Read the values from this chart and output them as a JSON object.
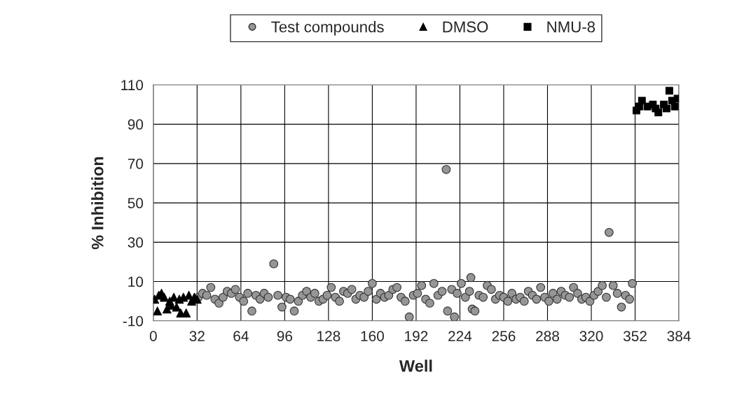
{
  "chart_data": {
    "type": "scatter",
    "xlabel": "Well",
    "ylabel": "% Inhibition",
    "xlim": [
      0,
      384
    ],
    "ylim": [
      -10,
      110
    ],
    "xticks": [
      0,
      32,
      64,
      96,
      128,
      160,
      192,
      224,
      256,
      288,
      320,
      352,
      384
    ],
    "yticks": [
      -10,
      10,
      30,
      50,
      70,
      90,
      110
    ],
    "grid": true,
    "legend": "top",
    "series": [
      {
        "name": "Test compounds",
        "color": "#969696",
        "marker": "circle",
        "x": [
          33,
          36,
          39,
          42,
          45,
          48,
          51,
          54,
          57,
          60,
          63,
          66,
          69,
          72,
          75,
          78,
          81,
          84,
          88,
          91,
          94,
          97,
          100,
          103,
          106,
          109,
          112,
          115,
          118,
          121,
          124,
          127,
          130,
          133,
          136,
          139,
          142,
          145,
          148,
          151,
          154,
          157,
          160,
          163,
          166,
          169,
          172,
          175,
          178,
          181,
          184,
          187,
          190,
          193,
          196,
          199,
          202,
          205,
          208,
          211,
          214,
          215,
          218,
          220,
          222,
          225,
          228,
          231,
          232,
          233,
          235,
          238,
          241,
          244,
          247,
          250,
          253,
          256,
          259,
          262,
          265,
          268,
          271,
          274,
          277,
          280,
          283,
          286,
          289,
          292,
          295,
          298,
          301,
          304,
          307,
          310,
          313,
          316,
          319,
          322,
          325,
          328,
          331,
          333,
          336,
          339,
          342,
          345,
          348,
          350
        ],
        "values": [
          2,
          4,
          3,
          7,
          1,
          -1,
          2,
          5,
          4,
          6,
          2,
          0,
          4,
          -5,
          3,
          1,
          4,
          2,
          19,
          3,
          -3,
          2,
          1,
          -5,
          0,
          3,
          5,
          2,
          4,
          0,
          1,
          3,
          7,
          2,
          0,
          5,
          4,
          6,
          1,
          3,
          2,
          5,
          9,
          1,
          4,
          2,
          3,
          6,
          7,
          2,
          0,
          -8,
          3,
          4,
          8,
          1,
          -1,
          9,
          3,
          5,
          67,
          -5,
          6,
          -8,
          4,
          9,
          2,
          5,
          12,
          -4,
          -5,
          3,
          2,
          8,
          6,
          1,
          3,
          2,
          0,
          4,
          1,
          2,
          0,
          5,
          3,
          1,
          7,
          2,
          0,
          4,
          1,
          5,
          3,
          2,
          7,
          4,
          1,
          2,
          0,
          3,
          5,
          8,
          2,
          35,
          8,
          4,
          -3,
          3,
          1,
          9
        ]
      },
      {
        "name": "DMSO",
        "color": "#000000",
        "marker": "triangle",
        "x": [
          1,
          3,
          4,
          6,
          8,
          10,
          12,
          13,
          15,
          17,
          19,
          20,
          22,
          24,
          26,
          28,
          30,
          32
        ],
        "values": [
          1,
          -5,
          3,
          4,
          2,
          -4,
          0,
          -2,
          2,
          -3,
          1,
          -6,
          2,
          -6,
          3,
          0,
          2,
          1
        ]
      },
      {
        "name": "NMU-8",
        "color": "#000000",
        "marker": "square",
        "x": [
          353,
          355,
          357,
          361,
          365,
          367,
          369,
          373,
          375,
          377,
          379,
          381,
          383
        ],
        "values": [
          97,
          99,
          102,
          99,
          100,
          98,
          96,
          100,
          98,
          107,
          102,
          99,
          103
        ]
      }
    ]
  }
}
